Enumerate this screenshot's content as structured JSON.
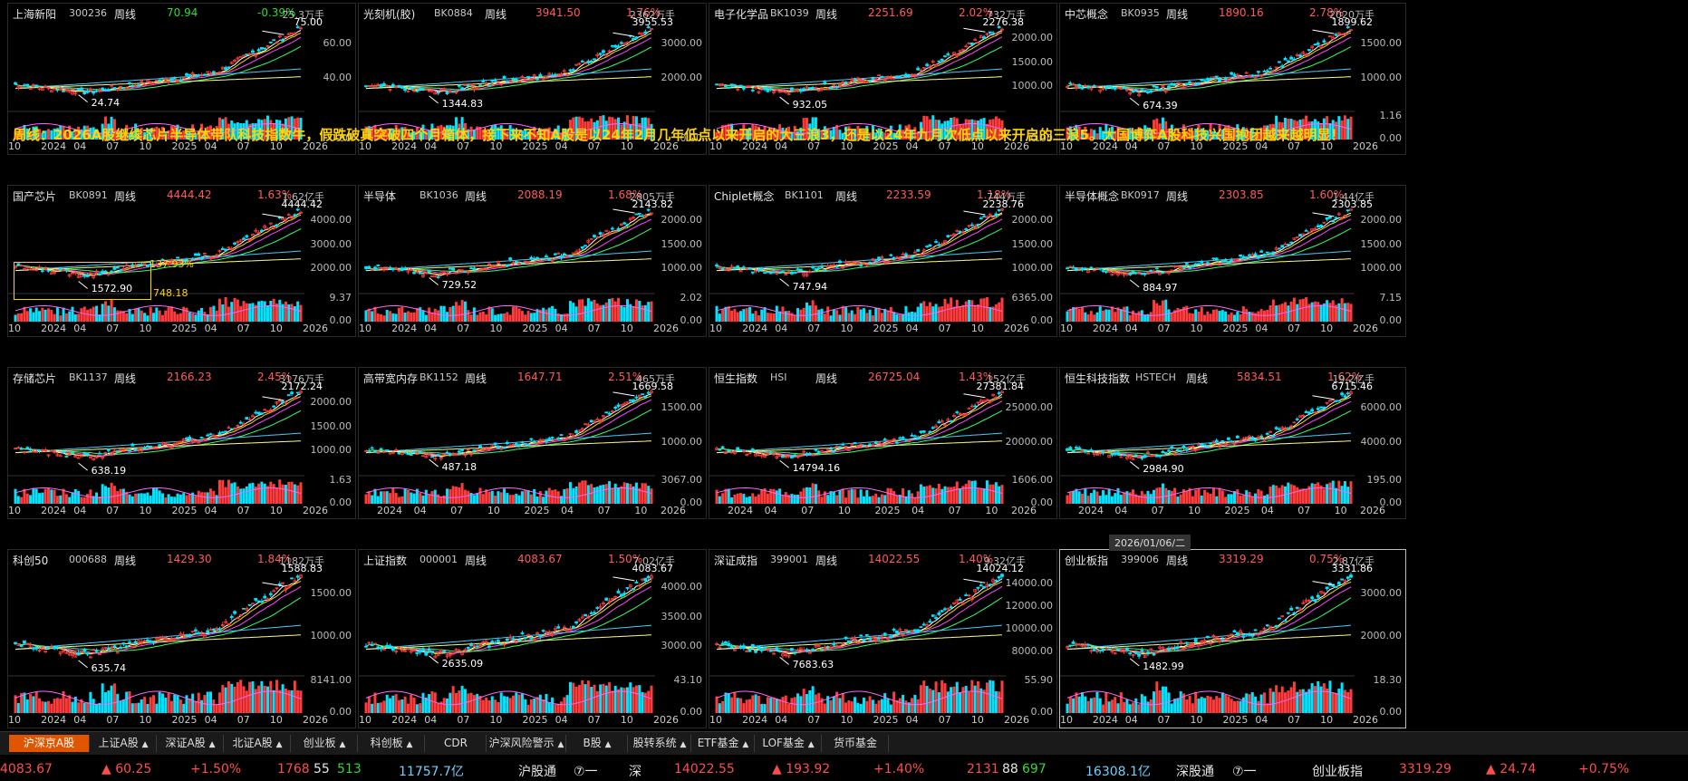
{
  "note": "周线：2026A股继续芯片半导体带队科技指数牛，假跌破真突破四个月箱体，接下来不知A股是以24年2月几年低点以来开启的大三浪3，还是以24年九月次低点以来开启的三浪5。大国博弈A股科技兴国抱团越来越明显！",
  "period_label": "周线",
  "date_tag": "2026/01/06/二",
  "panels": [
    {
      "name": "上海新阳",
      "code": "300236",
      "price": "70.94",
      "change": "-0.39%",
      "down": true,
      "vol_top": "25.3万手",
      "high_mark": "75.00",
      "low_mark": "24.74",
      "y_ticks": [
        "60.00",
        "40.00"
      ],
      "vol_ticks": [
        "0.00"
      ],
      "x_labels": [
        "10",
        "2024",
        "04",
        "07",
        "10",
        "2025",
        "04",
        "07",
        "10",
        "2026"
      ]
    },
    {
      "name": "光刻机(胶)",
      "code": "BK0884",
      "price": "3941.50",
      "change": "1.76%",
      "down": false,
      "vol_top": "2362万手",
      "high_mark": "3955.53",
      "low_mark": "1344.83",
      "y_ticks": [
        "3000.00",
        "2000.00"
      ],
      "vol_ticks": [
        "0.00"
      ],
      "x_labels": [
        "10",
        "2024",
        "04",
        "07",
        "10",
        "2025",
        "04",
        "07",
        "10",
        "2026"
      ]
    },
    {
      "name": "电子化学品",
      "code": "BK1039",
      "price": "2251.69",
      "change": "2.02%",
      "down": false,
      "vol_top": "732万手",
      "high_mark": "2276.38",
      "low_mark": "932.05",
      "y_ticks": [
        "2000.00",
        "1500.00",
        "1000.00"
      ],
      "vol_ticks": [
        "0.00"
      ],
      "x_labels": [
        "10",
        "2024",
        "04",
        "07",
        "10",
        "2025",
        "04",
        "07",
        "10",
        "2026"
      ]
    },
    {
      "name": "中芯概念",
      "code": "BK0935",
      "price": "1890.16",
      "change": "2.78%",
      "down": false,
      "vol_top": "2020万手",
      "high_mark": "1899.62",
      "low_mark": "674.39",
      "y_ticks": [
        "1500.00",
        "1000.00"
      ],
      "vol_ticks": [
        "1.16",
        "0.00"
      ],
      "x_labels": [
        "10",
        "2024",
        "04",
        "07",
        "10",
        "2025",
        "04",
        "07",
        "10",
        "2026"
      ]
    },
    {
      "name": "国产芯片",
      "code": "BK0891",
      "price": "4444.42",
      "change": "1.63%",
      "down": false,
      "vol_top": "1.62亿手",
      "high_mark": "4444.42",
      "low_mark": "1572.90",
      "y_ticks": [
        "4000.00",
        "3000.00",
        "2000.00"
      ],
      "vol_ticks": [
        "9.37",
        "0.00"
      ],
      "x_labels": [
        "10",
        "2024",
        "04",
        "07",
        "10",
        "2025",
        "04",
        "07",
        "10",
        "2026"
      ],
      "box_pct": "137.93%",
      "box_val": "748.18"
    },
    {
      "name": "半导体",
      "code": "BK1036",
      "price": "2088.19",
      "change": "1.68%",
      "down": false,
      "vol_top": "2805万手",
      "high_mark": "2143.82",
      "low_mark": "729.52",
      "y_ticks": [
        "2000.00",
        "1500.00",
        "1000.00"
      ],
      "vol_ticks": [
        "2.02",
        "0.00"
      ],
      "x_labels": [
        "10",
        "2024",
        "04",
        "07",
        "10",
        "2025",
        "04",
        "07",
        "10",
        "2026"
      ]
    },
    {
      "name": "Chiplet概念",
      "code": "BK1101",
      "price": "2233.59",
      "change": "1.18%",
      "down": false,
      "vol_top": "744万手",
      "high_mark": "2238.76",
      "low_mark": "747.94",
      "y_ticks": [
        "2000.00",
        "1500.00",
        "1000.00"
      ],
      "vol_ticks": [
        "6365.00",
        "0.00"
      ],
      "x_labels": [
        "10",
        "2024",
        "04",
        "07",
        "10",
        "2025",
        "04",
        "07",
        "10",
        "2026"
      ]
    },
    {
      "name": "半导体概念",
      "code": "BK0917",
      "price": "2303.85",
      "change": "1.60%",
      "down": false,
      "vol_top": "1.44亿手",
      "high_mark": "2303.85",
      "low_mark": "884.97",
      "y_ticks": [
        "2000.00",
        "1500.00",
        "1000.00"
      ],
      "vol_ticks": [
        "7.15",
        "0.00"
      ],
      "x_labels": [
        "10",
        "2024",
        "04",
        "07",
        "10",
        "2025",
        "04",
        "07",
        "10",
        "2026"
      ]
    },
    {
      "name": "存储芯片",
      "code": "BK1137",
      "price": "2166.23",
      "change": "2.45%",
      "down": false,
      "vol_top": "3176万手",
      "high_mark": "2172.24",
      "low_mark": "638.19",
      "y_ticks": [
        "2000.00",
        "1500.00",
        "1000.00"
      ],
      "vol_ticks": [
        "1.63",
        "0.00"
      ],
      "x_labels": [
        "10",
        "2024",
        "04",
        "07",
        "10",
        "2025",
        "04",
        "07",
        "10",
        "2026"
      ]
    },
    {
      "name": "高带宽内存",
      "code": "BK1152",
      "price": "1647.71",
      "change": "2.51%",
      "down": false,
      "vol_top": "465万手",
      "high_mark": "1669.58",
      "low_mark": "487.18",
      "y_ticks": [
        "1500.00",
        "1000.00"
      ],
      "vol_ticks": [
        "3067.00",
        "0.00"
      ],
      "x_labels": [
        "2024",
        "04",
        "07",
        "10",
        "2025",
        "04",
        "07",
        "10",
        "2026"
      ]
    },
    {
      "name": "恒生指数",
      "code": "HSI",
      "price": "26725.04",
      "change": "1.43%",
      "down": false,
      "vol_top": "152亿手",
      "high_mark": "27381.84",
      "low_mark": "14794.16",
      "y_ticks": [
        "25000.00",
        "20000.00"
      ],
      "vol_ticks": [
        "1606.00",
        "0.00"
      ],
      "x_labels": [
        "2024",
        "04",
        "07",
        "10",
        "2025",
        "04",
        "07",
        "10",
        "2026"
      ]
    },
    {
      "name": "恒生科技指数",
      "code": "HSTECH",
      "price": "5834.51",
      "change": "1.62%",
      "down": false,
      "vol_top": "19.2亿手",
      "high_mark": "6715.46",
      "low_mark": "2984.90",
      "y_ticks": [
        "6000.00",
        "4000.00"
      ],
      "vol_ticks": [
        "195.00",
        "0.00"
      ],
      "x_labels": [
        "2024",
        "04",
        "07",
        "10",
        "2025",
        "04",
        "07",
        "10",
        "2026"
      ]
    },
    {
      "name": "科创50",
      "code": "000688",
      "price": "1429.30",
      "change": "1.84%",
      "down": false,
      "vol_top": "1182万手",
      "high_mark": "1588.83",
      "low_mark": "635.74",
      "y_ticks": [
        "1500.00",
        "1000.00"
      ],
      "vol_ticks": [
        "8141.00",
        "0.00"
      ],
      "x_labels": [
        "10",
        "2024",
        "04",
        "07",
        "10",
        "2025",
        "04",
        "07",
        "10",
        "2026"
      ]
    },
    {
      "name": "上证指数",
      "code": "000001",
      "price": "4083.67",
      "change": "1.50%",
      "down": false,
      "vol_top": "7.02亿手",
      "high_mark": "4083.67",
      "low_mark": "2635.09",
      "y_ticks": [
        "4000.00",
        "3500.00",
        "3000.00"
      ],
      "vol_ticks": [
        "43.10",
        "0.00"
      ],
      "x_labels": [
        "10",
        "2024",
        "04",
        "07",
        "10",
        "2025",
        "04",
        "07",
        "10",
        "2026"
      ]
    },
    {
      "name": "深证成指",
      "code": "399001",
      "price": "14022.55",
      "change": "1.40%",
      "down": false,
      "vol_top": "9.32亿手",
      "high_mark": "14024.12",
      "low_mark": "7683.63",
      "y_ticks": [
        "14000.00",
        "12000.00",
        "10000.00",
        "8000.00"
      ],
      "vol_ticks": [
        "55.90",
        "0.00"
      ],
      "x_labels": [
        "10",
        "2024",
        "04",
        "07",
        "10",
        "2025",
        "04",
        "07",
        "10",
        "2026"
      ]
    },
    {
      "name": "创业板指",
      "code": "399006",
      "price": "3319.29",
      "change": "0.75%",
      "down": false,
      "vol_top": "2.87亿手",
      "high_mark": "3331.86",
      "low_mark": "1482.99",
      "y_ticks": [
        "3000.00",
        "2000.00"
      ],
      "vol_ticks": [
        "18.30",
        "0.00"
      ],
      "x_labels": [
        "10",
        "2024",
        "04",
        "07",
        "10",
        "2025",
        "04",
        "07",
        "10",
        "2026"
      ]
    }
  ],
  "tabs": [
    "沪深京A股",
    "上证A股",
    "深证A股",
    "北证A股",
    "创业板",
    "科创板",
    "CDR",
    "沪深风险警示",
    "B股",
    "股转系统",
    "ETF基金",
    "LOF基金",
    "货币基金"
  ],
  "status": {
    "sh_index": "4083.67",
    "sh_change": "▲ 60.25",
    "sh_pct": "+1.50%",
    "sh_up": "1768",
    "sh_flat": "55",
    "sh_down": "513",
    "sh_amount": "11757.7亿",
    "sh_connect": "沪股通",
    "sz_label": "深",
    "sz_index": "14022.55",
    "sz_change": "▲ 193.92",
    "sz_pct": "+1.40%",
    "sz_up": "2131",
    "sz_flat": "88",
    "sz_down": "697",
    "sz_amount": "16308.1亿",
    "sz_connect": "深股通",
    "cy_label": "创业板指",
    "cy_index": "3319.29",
    "cy_change": "▲ 24.74",
    "cy_pct": "+0.75%"
  }
}
